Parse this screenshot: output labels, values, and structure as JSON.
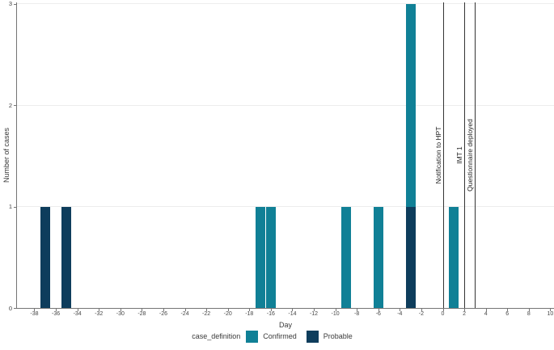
{
  "chart_data": {
    "type": "bar",
    "title": "",
    "xlabel": "Day",
    "ylabel": "Number of cases",
    "legend_title": "case_definition",
    "legend_position": "bottom",
    "xlim": [
      -39.6,
      10.4
    ],
    "ylim": [
      0,
      3
    ],
    "x_ticks": [
      -38,
      -36,
      -34,
      -32,
      -30,
      -28,
      -26,
      -24,
      -22,
      -20,
      -18,
      -16,
      -14,
      -12,
      -10,
      -8,
      -6,
      -4,
      -2,
      0,
      2,
      4,
      6,
      8,
      10
    ],
    "y_ticks": [
      0,
      1,
      2,
      3
    ],
    "grid": "horizontal-only",
    "bar_width_days": 0.9,
    "stack_order_bottom_to_top": [
      "Probable",
      "Confirmed"
    ],
    "series": [
      {
        "name": "Confirmed",
        "color": "#108096",
        "data": [
          {
            "day": -17,
            "count": 1
          },
          {
            "day": -16,
            "count": 1
          },
          {
            "day": -9,
            "count": 1
          },
          {
            "day": -6,
            "count": 1
          },
          {
            "day": -3,
            "count": 2
          },
          {
            "day": 1,
            "count": 1
          }
        ]
      },
      {
        "name": "Probable",
        "color": "#0e3d5c",
        "data": [
          {
            "day": -37,
            "count": 1
          },
          {
            "day": -35,
            "count": 1
          },
          {
            "day": -3,
            "count": 1
          }
        ]
      }
    ],
    "events": [
      {
        "day": 0,
        "label": "Notification to HPT"
      },
      {
        "day": 2,
        "label": "IMT 1"
      },
      {
        "day": 3,
        "label": "Questionnaire deployed"
      }
    ],
    "colors": {
      "axis": "#757575",
      "tick_text": "#454545",
      "gridline": "#ededed",
      "event_line": "#343434"
    }
  }
}
